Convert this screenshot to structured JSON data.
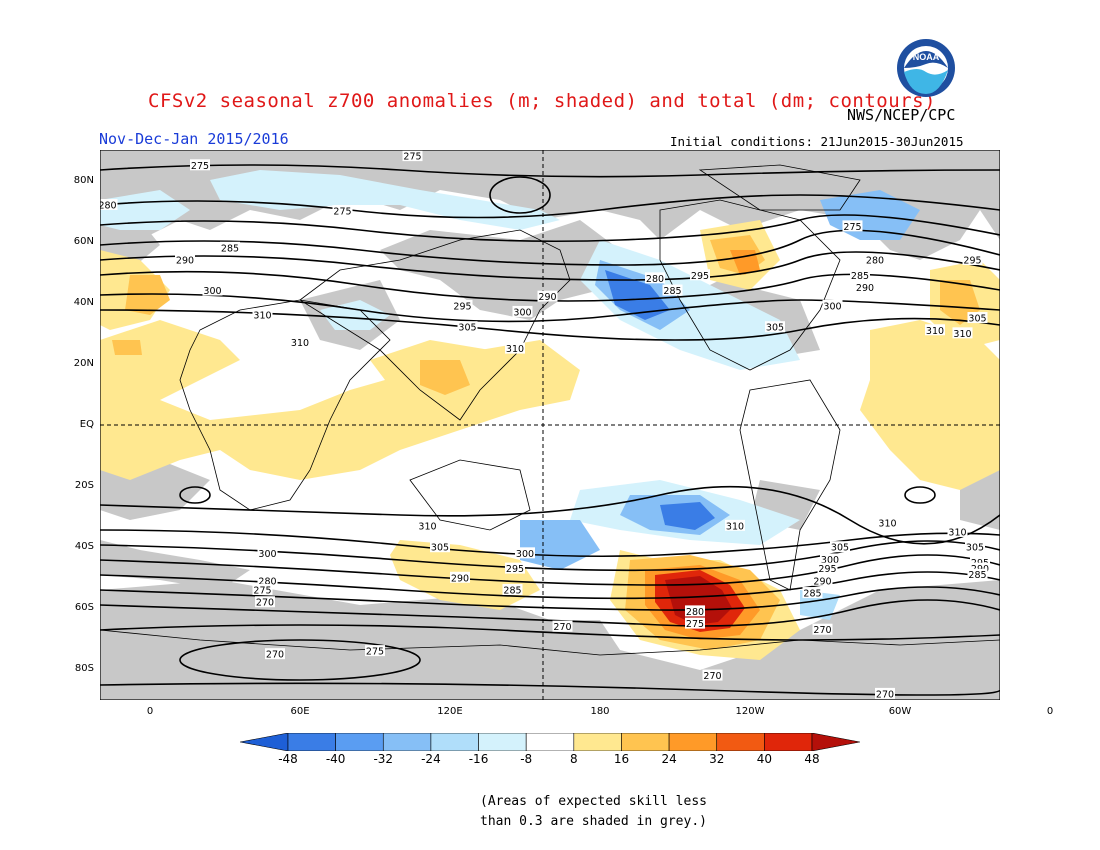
{
  "title": "CFSv2 seasonal z700 anomalies (m; shaded) and total (dm; contours)",
  "agency": "NWS/NCEP/CPC",
  "season": "Nov-Dec-Jan 2015/2016",
  "initial_conditions": "Initial conditions: 21Jun2015-30Jun2015",
  "logo_text": "NOAA",
  "lat_labels": [
    "80N",
    "60N",
    "40N",
    "20N",
    "EQ",
    "20S",
    "40S",
    "60S",
    "80S"
  ],
  "lon_labels": [
    "0",
    "60E",
    "120E",
    "180",
    "120W",
    "60W",
    "0"
  ],
  "colorbar": {
    "ticks": [
      "-48",
      "-40",
      "-32",
      "-24",
      "-16",
      "-8",
      "8",
      "16",
      "24",
      "32",
      "40",
      "48"
    ],
    "colors": [
      "#1e5fd6",
      "#3a7de6",
      "#5a9df2",
      "#86bff6",
      "#b0defa",
      "#d4f2fc",
      "#ffffff",
      "#ffe890",
      "#ffc450",
      "#ff9a28",
      "#f25a12",
      "#e0260a",
      "#b4100a"
    ]
  },
  "note_lines": [
    "(Areas of expected skill less",
    "than 0.3 are shaded in grey.)"
  ],
  "contour_labels": [
    {
      "text": "275",
      "lon": 20,
      "lat": 85
    },
    {
      "text": "275",
      "lon": 105,
      "lat": 88
    },
    {
      "text": "275",
      "lon": 77,
      "lat": 70
    },
    {
      "text": "280",
      "lon": -17,
      "lat": 72
    },
    {
      "text": "285",
      "lon": 32,
      "lat": 58
    },
    {
      "text": "290",
      "lon": 14,
      "lat": 54
    },
    {
      "text": "295",
      "lon": -31,
      "lat": 54
    },
    {
      "text": "300",
      "lon": 25,
      "lat": 44
    },
    {
      "text": "305",
      "lon": -29,
      "lat": 35
    },
    {
      "text": "310",
      "lon": -35,
      "lat": 30
    },
    {
      "text": "310",
      "lon": 45,
      "lat": 36
    },
    {
      "text": "310",
      "lon": 60,
      "lat": 27
    },
    {
      "text": "295",
      "lon": 125,
      "lat": 39
    },
    {
      "text": "305",
      "lon": 127,
      "lat": 32
    },
    {
      "text": "290",
      "lon": 159,
      "lat": 42
    },
    {
      "text": "300",
      "lon": 149,
      "lat": 37
    },
    {
      "text": "310",
      "lon": 146,
      "lat": 25
    },
    {
      "text": "280",
      "lon": -158,
      "lat": 48
    },
    {
      "text": "285",
      "lon": -151,
      "lat": 44
    },
    {
      "text": "295",
      "lon": -140,
      "lat": 49
    },
    {
      "text": "305",
      "lon": -110,
      "lat": 32
    },
    {
      "text": "300",
      "lon": -87,
      "lat": 39
    },
    {
      "text": "290",
      "lon": -74,
      "lat": 45
    },
    {
      "text": "285",
      "lon": -76,
      "lat": 49
    },
    {
      "text": "280",
      "lon": -70,
      "lat": 54
    },
    {
      "text": "275",
      "lon": -79,
      "lat": 65
    },
    {
      "text": "310",
      "lon": -46,
      "lat": 31
    },
    {
      "text": "310",
      "lon": 111,
      "lat": -33
    },
    {
      "text": "305",
      "lon": 116,
      "lat": -40
    },
    {
      "text": "300",
      "lon": 150,
      "lat": -42
    },
    {
      "text": "295",
      "lon": 146,
      "lat": -47
    },
    {
      "text": "290",
      "lon": 124,
      "lat": -50
    },
    {
      "text": "285",
      "lon": 145,
      "lat": -54
    },
    {
      "text": "310",
      "lon": -126,
      "lat": -33
    },
    {
      "text": "310",
      "lon": -65,
      "lat": -32
    },
    {
      "text": "305",
      "lon": -84,
      "lat": -40
    },
    {
      "text": "300",
      "lon": -88,
      "lat": -44
    },
    {
      "text": "295",
      "lon": -89,
      "lat": -47
    },
    {
      "text": "290",
      "lon": -91,
      "lat": -51
    },
    {
      "text": "285",
      "lon": -95,
      "lat": -55
    },
    {
      "text": "280",
      "lon": -142,
      "lat": -61
    },
    {
      "text": "275",
      "lon": -142,
      "lat": -65
    },
    {
      "text": "270",
      "lon": -91,
      "lat": -67
    },
    {
      "text": "270",
      "lon": -135,
      "lat": -82
    },
    {
      "text": "270",
      "lon": -66,
      "lat": -88
    },
    {
      "text": "270",
      "lon": 165,
      "lat": -66
    },
    {
      "text": "275",
      "lon": 90,
      "lat": -74
    },
    {
      "text": "270",
      "lon": 50,
      "lat": -75
    },
    {
      "text": "310",
      "lon": -37,
      "lat": -35
    },
    {
      "text": "305",
      "lon": -30,
      "lat": -40
    },
    {
      "text": "295",
      "lon": -28,
      "lat": -45
    },
    {
      "text": "290",
      "lon": -28,
      "lat": -47
    },
    {
      "text": "285",
      "lon": -29,
      "lat": -49
    },
    {
      "text": "300",
      "lon": 47,
      "lat": -42
    },
    {
      "text": "280",
      "lon": 47,
      "lat": -51
    },
    {
      "text": "275",
      "lon": 45,
      "lat": -54
    },
    {
      "text": "270",
      "lon": 46,
      "lat": -58
    }
  ]
}
